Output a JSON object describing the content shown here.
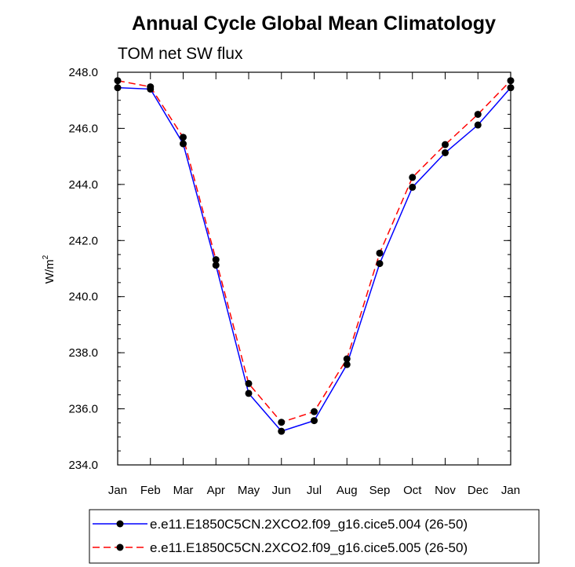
{
  "chart_data": {
    "type": "line",
    "title": "Annual Cycle Global Mean Climatology",
    "subtitle": "TOM net SW flux",
    "xlabel": "",
    "ylabel": "W/m",
    "ylabel_superscript": "2",
    "categories": [
      "Jan",
      "Feb",
      "Mar",
      "Apr",
      "May",
      "Jun",
      "Jul",
      "Aug",
      "Sep",
      "Oct",
      "Nov",
      "Dec",
      "Jan"
    ],
    "ylim": [
      234.0,
      248.0
    ],
    "yticks": [
      "234.0",
      "236.0",
      "238.0",
      "240.0",
      "242.0",
      "244.0",
      "246.0",
      "248.0"
    ],
    "grid": false,
    "legend_position": "bottom",
    "series": [
      {
        "name": "e.e11.E1850C5CN.2XCO2.f09_g16.cice5.004 (26-50)",
        "color": "#0000ff",
        "dash": "solid",
        "values": [
          247.45,
          247.4,
          245.45,
          241.12,
          236.55,
          235.2,
          235.58,
          237.58,
          241.18,
          243.9,
          245.13,
          246.12,
          247.45
        ]
      },
      {
        "name": "e.e11.E1850C5CN.2XCO2.f09_g16.cice5.005 (26-50)",
        "color": "#ff0000",
        "dash": "dashed",
        "values": [
          247.7,
          247.48,
          245.68,
          241.32,
          236.9,
          235.52,
          235.9,
          237.78,
          241.55,
          244.25,
          245.42,
          246.5,
          247.7
        ]
      }
    ]
  }
}
